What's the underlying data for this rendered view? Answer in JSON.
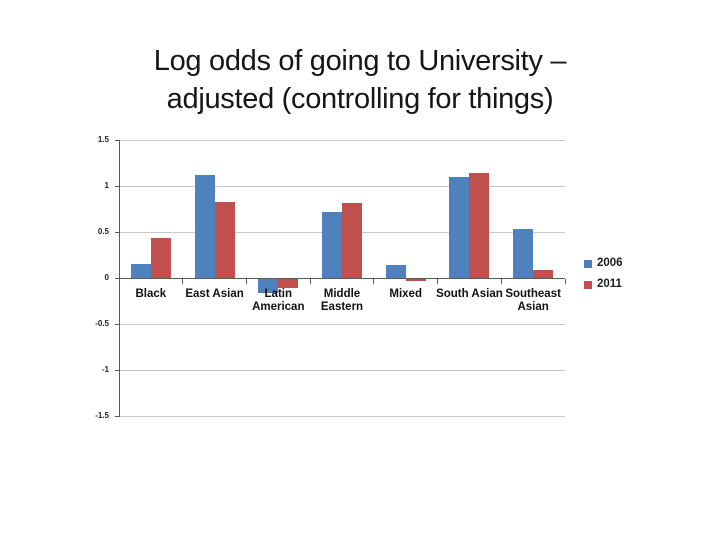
{
  "title_lines": [
    "Log odds of going to University –",
    "adjusted (controlling for things)"
  ],
  "colors": {
    "series_2006": "#4F81BD",
    "series_2011": "#C0504D",
    "gridline": "#c8c8c8",
    "axis": "#5a5a5a",
    "background": "#ffffff"
  },
  "chart_data": {
    "type": "bar",
    "title": "Log odds of going to University – adjusted (controlling for things)",
    "categories": [
      "Black",
      "East Asian",
      "Latin American",
      "Middle Eastern",
      "Mixed",
      "South Asian",
      "Southeast Asian"
    ],
    "series": [
      {
        "name": "2006",
        "color": "#4F81BD",
        "values": [
          0.15,
          1.12,
          -0.15,
          0.72,
          0.14,
          1.1,
          0.53
        ]
      },
      {
        "name": "2011",
        "color": "#C0504D",
        "values": [
          0.44,
          0.83,
          -0.1,
          0.82,
          -0.02,
          1.14,
          0.09
        ]
      }
    ],
    "xlabel": "",
    "ylabel": "",
    "ylim": [
      -1.5,
      1.5
    ],
    "ytick_interval": 0.5,
    "yticks": [
      "1.5",
      "1",
      "0.5",
      "0",
      "-0.5",
      "-1",
      "-1.5"
    ],
    "grid": true,
    "legend_position": "right"
  }
}
